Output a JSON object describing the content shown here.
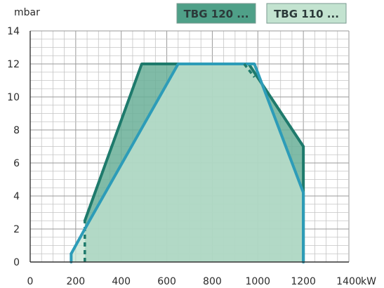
{
  "chart_data": {
    "type": "area",
    "title": "",
    "xlabel": "kW",
    "ylabel": "mbar",
    "xlim": [
      0,
      1400
    ],
    "ylim": [
      0,
      14
    ],
    "x_ticks": [
      0,
      200,
      400,
      600,
      800,
      1000,
      1200,
      1400
    ],
    "y_ticks": [
      0,
      2,
      4,
      6,
      8,
      10,
      12,
      14
    ],
    "grid": true,
    "legend_position": "top-right",
    "series": [
      {
        "name": "TBG 120 ...",
        "color": "#1e7a6c",
        "fill": "#6aaf98",
        "points": [
          [
            240,
            0
          ],
          [
            240,
            2.5
          ],
          [
            490,
            12
          ],
          [
            960,
            12
          ],
          [
            1200,
            7
          ],
          [
            1200,
            0
          ]
        ],
        "dashed_segment": [
          [
            240,
            0
          ],
          [
            240,
            2.5
          ]
        ]
      },
      {
        "name": "TBG 110 ...",
        "color": "#2d9cb8",
        "fill": "#c3e3d0",
        "points": [
          [
            180,
            0
          ],
          [
            180,
            0.5
          ],
          [
            240,
            2
          ],
          [
            650,
            12
          ],
          [
            950,
            12
          ],
          [
            985,
            12
          ],
          [
            1200,
            4.2
          ],
          [
            1200,
            0
          ]
        ],
        "dashed_segment": [
          [
            940,
            12
          ],
          [
            985,
            11.2
          ]
        ]
      }
    ]
  }
}
